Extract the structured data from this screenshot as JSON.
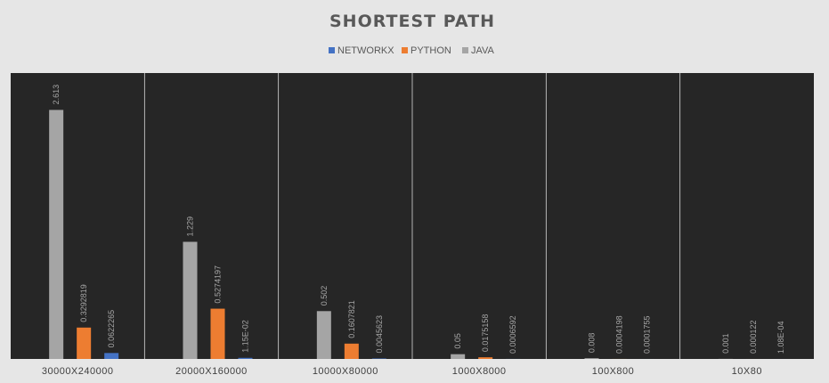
{
  "chart_data": {
    "type": "bar",
    "title": "SHORTEST PATH",
    "legend_position": "top",
    "categories": [
      "30000X240000",
      "20000X160000",
      "10000X80000",
      "1000X8000",
      "100X800",
      "10X80"
    ],
    "series": [
      {
        "name": "JAVA",
        "color": "#a5a5a5",
        "values": [
          2.613,
          1.229,
          0.502,
          0.05,
          0.008,
          0.001
        ],
        "labels": [
          "2.613",
          "1.229",
          "0.502",
          "0.05",
          "0.008",
          "0.001"
        ]
      },
      {
        "name": "PYTHON",
        "color": "#ed7d31",
        "values": [
          0.3292819,
          0.5274197,
          0.1607821,
          0.0175158,
          0.0004198,
          0.000122
        ],
        "labels": [
          "0.3292819",
          "0.5274197",
          "0.1607821",
          "0.0175158",
          "0.0004198",
          "0.000122"
        ]
      },
      {
        "name": "NETWORKX",
        "color": "#4472c4",
        "values": [
          0.0622265,
          0.0115,
          0.0045623,
          0.0006592,
          0.0001755,
          0.000108
        ],
        "labels": [
          "0.0622265",
          "1.15E-02",
          "0.0045623",
          "0.0006592",
          "0.0001755",
          "1.08E-04"
        ]
      }
    ],
    "legend_order": [
      "NETWORKX",
      "PYTHON",
      "JAVA"
    ],
    "ylim": [
      0,
      3.0
    ],
    "grid": "vertical category separators",
    "plot_background": "#262626"
  }
}
